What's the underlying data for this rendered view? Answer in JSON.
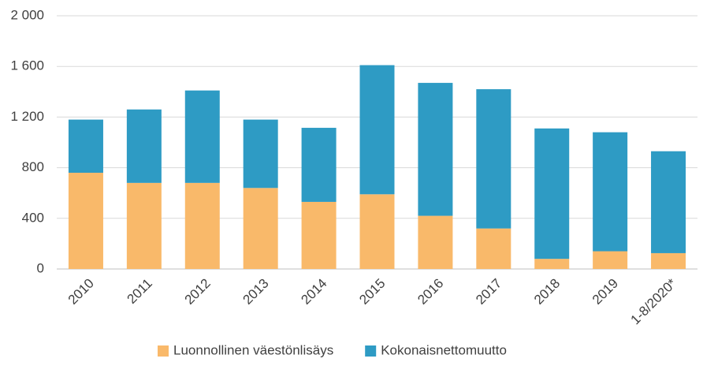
{
  "chart_data": {
    "type": "stacked_bar",
    "categories": [
      "2010",
      "2011",
      "2012",
      "2013",
      "2014",
      "2015",
      "2016",
      "2017",
      "2018",
      "2019",
      "1-8/2020*"
    ],
    "series": [
      {
        "name": "Luonnollinen väestönlisäys",
        "color": "#f9b96a",
        "values": [
          760,
          680,
          680,
          640,
          530,
          590,
          420,
          320,
          80,
          140,
          125
        ]
      },
      {
        "name": "Kokonaisnettomuutto",
        "color": "#2e9bc4",
        "values": [
          420,
          580,
          730,
          540,
          585,
          1020,
          1050,
          1100,
          1030,
          940,
          805
        ]
      }
    ],
    "ylim": [
      0,
      2000
    ],
    "yticks": [
      0,
      400,
      800,
      {
        "value": 1200,
        "label": "1 200"
      },
      {
        "value": 1600,
        "label": "1 600"
      },
      {
        "value": 2000,
        "label": "2 000"
      }
    ],
    "grid": true,
    "legend": "bottom"
  }
}
